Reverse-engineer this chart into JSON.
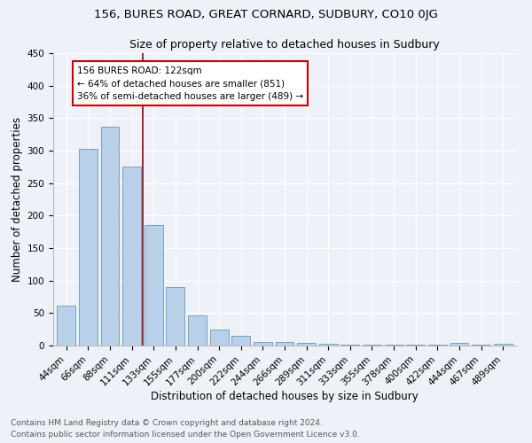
{
  "title1": "156, BURES ROAD, GREAT CORNARD, SUDBURY, CO10 0JG",
  "title2": "Size of property relative to detached houses in Sudbury",
  "xlabel": "Distribution of detached houses by size in Sudbury",
  "ylabel": "Number of detached properties",
  "categories": [
    "44sqm",
    "66sqm",
    "88sqm",
    "111sqm",
    "133sqm",
    "155sqm",
    "177sqm",
    "200sqm",
    "222sqm",
    "244sqm",
    "266sqm",
    "289sqm",
    "311sqm",
    "333sqm",
    "355sqm",
    "378sqm",
    "400sqm",
    "422sqm",
    "444sqm",
    "467sqm",
    "489sqm"
  ],
  "values": [
    61,
    303,
    337,
    275,
    185,
    90,
    46,
    24,
    15,
    6,
    5,
    4,
    3,
    2,
    2,
    2,
    1,
    1,
    4,
    1,
    3
  ],
  "bar_color": "#b8d0e8",
  "bar_edge_color": "#6699bb",
  "vline_x_index": 3.5,
  "annotation_text_line1": "156 BURES ROAD: 122sqm",
  "annotation_text_line2": "← 64% of detached houses are smaller (851)",
  "annotation_text_line3": "36% of semi-detached houses are larger (489) →",
  "annotation_box_color": "#ffffff",
  "annotation_box_edge_color": "#cc0000",
  "vline_color": "#990000",
  "footnote1": "Contains HM Land Registry data © Crown copyright and database right 2024.",
  "footnote2": "Contains public sector information licensed under the Open Government Licence v3.0.",
  "ylim": [
    0,
    450
  ],
  "yticks": [
    0,
    50,
    100,
    150,
    200,
    250,
    300,
    350,
    400,
    450
  ],
  "bg_color": "#eef2f8",
  "grid_color": "#ffffff",
  "title1_fontsize": 9.5,
  "title2_fontsize": 9,
  "axis_label_fontsize": 8.5,
  "tick_fontsize": 7.5,
  "footnote_fontsize": 6.5
}
